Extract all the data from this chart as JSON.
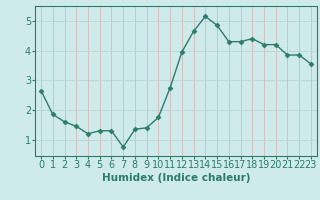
{
  "x": [
    0,
    1,
    2,
    3,
    4,
    5,
    6,
    7,
    8,
    9,
    10,
    11,
    12,
    13,
    14,
    15,
    16,
    17,
    18,
    19,
    20,
    21,
    22,
    23
  ],
  "y": [
    2.65,
    1.85,
    1.6,
    1.45,
    1.2,
    1.3,
    1.3,
    0.75,
    1.35,
    1.4,
    1.75,
    2.75,
    3.95,
    4.65,
    5.15,
    4.85,
    4.3,
    4.3,
    4.4,
    4.2,
    4.2,
    3.85,
    3.85,
    3.55
  ],
  "line_color": "#2d7d6e",
  "marker": "D",
  "marker_size": 2.5,
  "xlabel": "Humidex (Indice chaleur)",
  "xlabel_fontsize": 7.5,
  "ylabel_ticks": [
    1,
    2,
    3,
    4,
    5
  ],
  "xlim": [
    -0.5,
    23.5
  ],
  "ylim": [
    0.45,
    5.5
  ],
  "bg_color": "#ceeaea",
  "grid_color": "#b8d4d4",
  "tick_fontsize": 7,
  "line_width": 1.0
}
